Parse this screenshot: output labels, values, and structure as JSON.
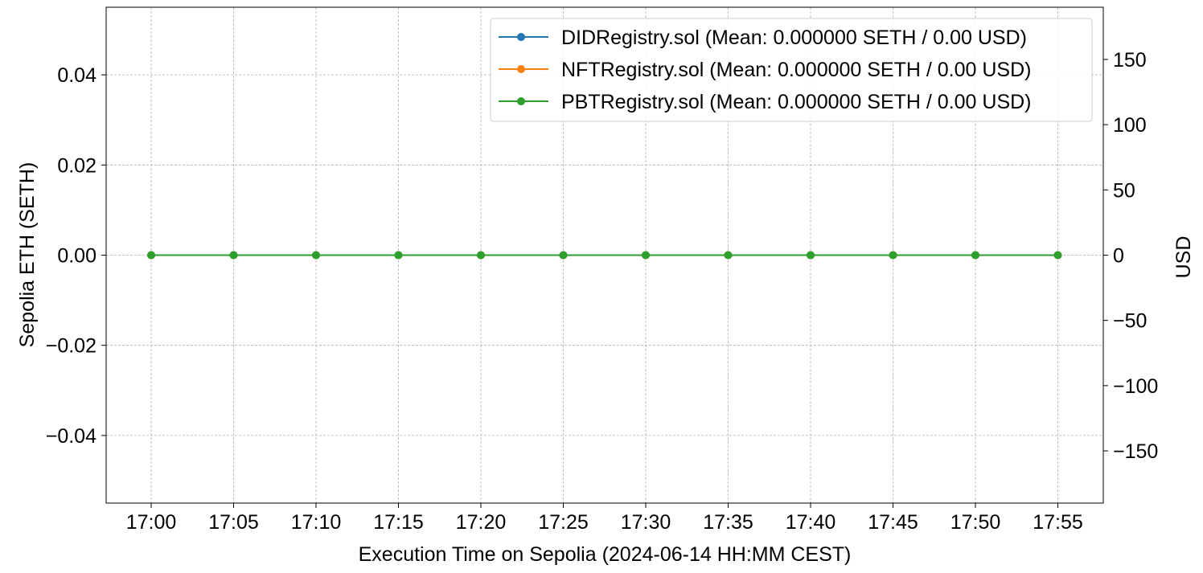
{
  "chart_data": {
    "type": "line",
    "xlabel": "Execution Time on Sepolia (2024-06-14 HH:MM CEST)",
    "ylabel": "Sepolia ETH (SETH)",
    "y2label": "USD",
    "x": [
      "17:00",
      "17:05",
      "17:10",
      "17:15",
      "17:20",
      "17:25",
      "17:30",
      "17:35",
      "17:40",
      "17:45",
      "17:50",
      "17:55"
    ],
    "x_ticks": [
      "17:00",
      "17:05",
      "17:10",
      "17:15",
      "17:20",
      "17:25",
      "17:30",
      "17:35",
      "17:40",
      "17:45",
      "17:50",
      "17:55"
    ],
    "y_ticks": [
      0.04,
      0.02,
      0.0,
      -0.02,
      -0.04
    ],
    "y_tick_labels": [
      "0.04",
      "0.02",
      "0.00",
      "−0.02",
      "−0.04"
    ],
    "ylim": [
      -0.055,
      0.055
    ],
    "y2_ticks": [
      150,
      100,
      50,
      0,
      -50,
      -100,
      -150
    ],
    "y2_tick_labels": [
      "150",
      "100",
      "50",
      "0",
      "−50",
      "−100",
      "−150"
    ],
    "y2lim": [
      -190,
      190
    ],
    "grid": true,
    "legend_position": "top-right",
    "series": [
      {
        "name": "DIDRegistry.sol (Mean: 0.000000 SETH / 0.00 USD)",
        "color": "#1f77b4",
        "marker": "circle",
        "values": [
          0,
          0,
          0,
          0,
          0,
          0,
          0,
          0,
          0,
          0,
          0,
          0
        ]
      },
      {
        "name": "NFTRegistry.sol (Mean: 0.000000 SETH / 0.00 USD)",
        "color": "#ff7f0e",
        "marker": "circle",
        "values": [
          0,
          0,
          0,
          0,
          0,
          0,
          0,
          0,
          0,
          0,
          0,
          0
        ]
      },
      {
        "name": "PBTRegistry.sol (Mean: 0.000000 SETH / 0.00 USD)",
        "color": "#2ca02c",
        "marker": "circle",
        "values": [
          0,
          0,
          0,
          0,
          0,
          0,
          0,
          0,
          0,
          0,
          0,
          0
        ]
      }
    ]
  }
}
